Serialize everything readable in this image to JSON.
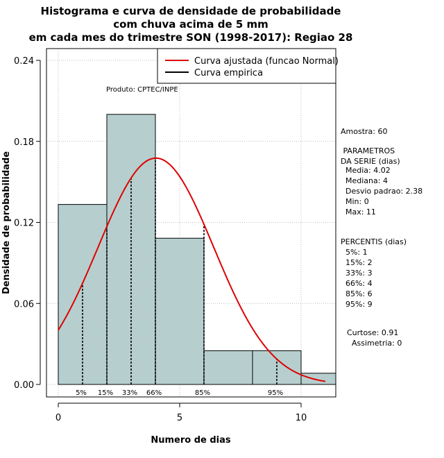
{
  "chart_data": {
    "type": "bar",
    "title_lines": [
      "Histograma e curva de densidade de probabilidade",
      "com chuva acima de 5 mm",
      "em cada mes do trimestre SON (1998-2017): Regiao 28"
    ],
    "xlabel": "Numero de dias",
    "ylabel": "Densidade de probabilidade",
    "xlim": [
      -0.5,
      11.5
    ],
    "ylim": [
      0,
      0.24
    ],
    "x_ticks": [
      0,
      5,
      10
    ],
    "y_ticks": [
      0.0,
      0.06,
      0.12,
      0.18,
      0.24
    ],
    "y_tick_labels": [
      "0.00",
      "0.06",
      "0.12",
      "0.18",
      "0.24"
    ],
    "bins": [
      {
        "start": 0,
        "end": 2,
        "density": 0.1333
      },
      {
        "start": 2,
        "end": 4,
        "density": 0.2
      },
      {
        "start": 4,
        "end": 6,
        "density": 0.1083
      },
      {
        "start": 6,
        "end": 8,
        "density": 0.025
      },
      {
        "start": 8,
        "end": 10,
        "density": 0.025
      },
      {
        "start": 10,
        "end": 12,
        "density": 0.0083
      }
    ],
    "normal_fit": {
      "mean": 4.02,
      "sd": 2.38,
      "x_range": [
        0,
        11
      ],
      "color": "#dd0000"
    },
    "percentile_markers": [
      {
        "label": "5%",
        "x": 1
      },
      {
        "label": "15%",
        "x": 2
      },
      {
        "label": "33%",
        "x": 3
      },
      {
        "label": "66%",
        "x": 4
      },
      {
        "label": "85%",
        "x": 6
      },
      {
        "label": "95%",
        "x": 9
      }
    ],
    "legend": [
      {
        "label": "Curva ajustada (funcao Normal)",
        "color": "#dd0000"
      },
      {
        "label": "Curva empirica",
        "color": "#000000"
      }
    ],
    "bar_color": "#b6cfce",
    "grid": true,
    "product_note": "Produto: CPTEC/INPE"
  },
  "stats": {
    "amostra": "Amostra: 60",
    "parametros_title_1": " PARAMETROS",
    "parametros_title_2": "DA SERIE (dias)",
    "media": "  Media: 4.02",
    "mediana": "  Mediana: 4",
    "desvio": "  Desvio padrao: 2.38",
    "min": "  Min: 0",
    "max": "  Max: 11",
    "percentis_title": "PERCENTIS (dias)",
    "p5": "  5%: 1",
    "p15": "  15%: 2",
    "p33": "  33%: 3",
    "p66": "  66%: 4",
    "p85": "  85%: 6",
    "p95": "  95%: 9",
    "curtose": "Curtose: 0.91",
    "assimetria": "  Assimetria: 0"
  }
}
